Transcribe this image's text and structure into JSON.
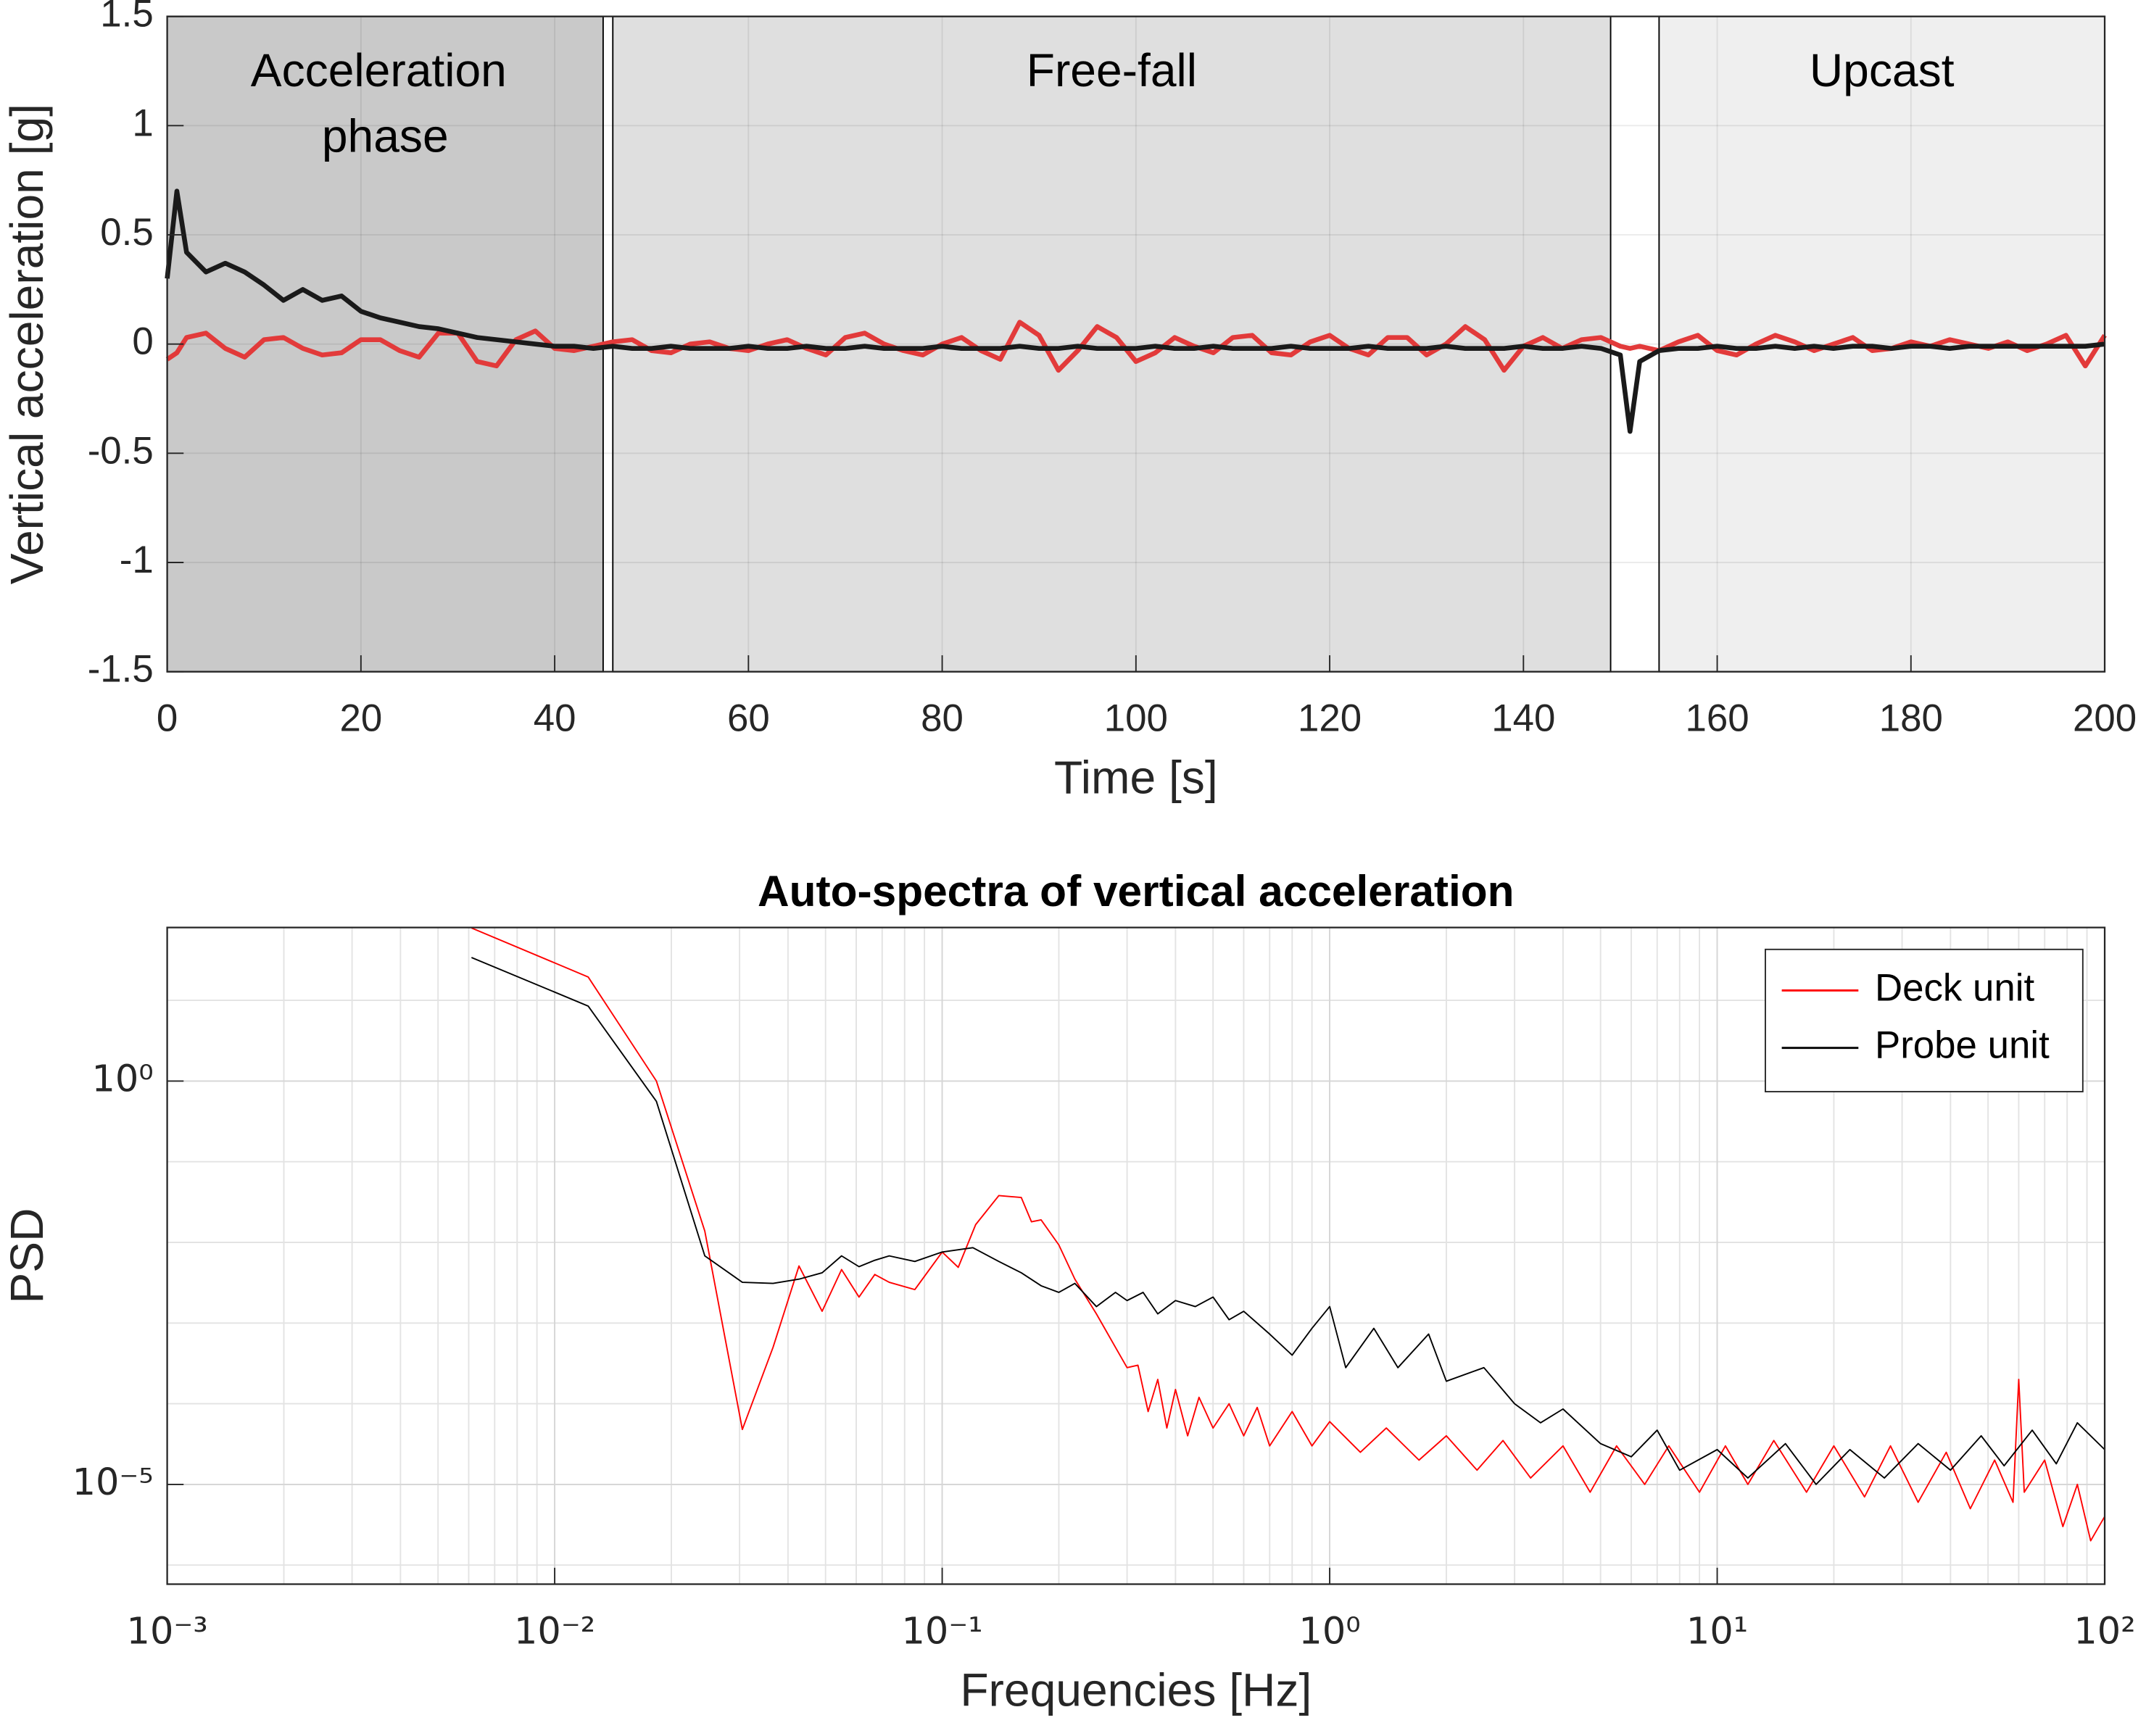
{
  "chart_data": [
    {
      "type": "line",
      "xlabel": "Time [s]",
      "ylabel": "Vertical acceleration [g]",
      "xlim": [
        0,
        200
      ],
      "ylim": [
        -1.5,
        1.5
      ],
      "xticks": [
        0,
        20,
        40,
        60,
        80,
        100,
        120,
        140,
        160,
        180,
        200
      ],
      "yticks": [
        -1.5,
        -1,
        -0.5,
        0,
        0.5,
        1,
        1.5
      ],
      "grid": true,
      "regions": [
        {
          "label": "Acceleration phase",
          "start": 0,
          "end": 45,
          "color": "#c9c9c9"
        },
        {
          "label": "Free-fall",
          "start": 46,
          "end": 149,
          "color": "#dfdfdf"
        },
        {
          "label": "Upcast",
          "start": 154,
          "end": 200,
          "color": "#efefef"
        }
      ],
      "x": [
        0,
        1,
        2,
        4,
        6,
        8,
        10,
        12,
        14,
        16,
        18,
        20,
        22,
        24,
        26,
        28,
        30,
        32,
        34,
        36,
        38,
        40,
        42,
        44,
        46,
        48,
        50,
        52,
        54,
        56,
        58,
        60,
        62,
        64,
        66,
        68,
        70,
        72,
        74,
        76,
        78,
        80,
        82,
        84,
        86,
        88,
        90,
        92,
        94,
        96,
        98,
        100,
        102,
        104,
        106,
        108,
        110,
        112,
        114,
        116,
        118,
        120,
        122,
        124,
        126,
        128,
        130,
        132,
        134,
        136,
        138,
        140,
        142,
        144,
        146,
        148,
        150,
        151,
        152,
        154,
        156,
        158,
        160,
        162,
        164,
        166,
        168,
        170,
        172,
        174,
        176,
        178,
        180,
        182,
        184,
        186,
        188,
        190,
        192,
        194,
        196,
        198,
        200
      ],
      "series": [
        {
          "color": "#e23a3a",
          "values": [
            -0.07,
            -0.04,
            0.03,
            0.05,
            -0.02,
            -0.06,
            0.02,
            0.03,
            -0.02,
            -0.05,
            -0.04,
            0.02,
            0.02,
            -0.03,
            -0.06,
            0.05,
            0.05,
            -0.08,
            -0.1,
            0.02,
            0.06,
            -0.02,
            -0.03,
            -0.01,
            0.01,
            0.02,
            -0.03,
            -0.04,
            0,
            0.01,
            -0.02,
            -0.03,
            0,
            0.02,
            -0.02,
            -0.05,
            0.03,
            0.05,
            0,
            -0.03,
            -0.05,
            0,
            0.03,
            -0.03,
            -0.07,
            0.1,
            0.04,
            -0.12,
            -0.03,
            0.08,
            0.03,
            -0.08,
            -0.04,
            0.03,
            -0.01,
            -0.04,
            0.03,
            0.04,
            -0.04,
            -0.05,
            0.01,
            0.04,
            -0.02,
            -0.05,
            0.03,
            0.03,
            -0.05,
            0,
            0.08,
            0.02,
            -0.12,
            -0.01,
            0.03,
            -0.02,
            0.02,
            0.03,
            -0.01,
            -0.02,
            -0.01,
            -0.03,
            0.01,
            0.04,
            -0.03,
            -0.05,
            0,
            0.04,
            0.01,
            -0.03,
            0,
            0.03,
            -0.03,
            -0.02,
            0.01,
            -0.01,
            0.02,
            0,
            -0.02,
            0.01,
            -0.03,
            0,
            0.04,
            -0.1,
            0.04
          ]
        },
        {
          "color": "#1a1a1a",
          "values": [
            0.3,
            0.7,
            0.42,
            0.33,
            0.37,
            0.33,
            0.27,
            0.2,
            0.25,
            0.2,
            0.22,
            0.15,
            0.12,
            0.1,
            0.08,
            0.07,
            0.05,
            0.03,
            0.02,
            0.01,
            0,
            -0.01,
            -0.01,
            -0.02,
            -0.01,
            -0.02,
            -0.02,
            -0.01,
            -0.02,
            -0.02,
            -0.02,
            -0.01,
            -0.02,
            -0.02,
            -0.01,
            -0.02,
            -0.02,
            -0.01,
            -0.02,
            -0.02,
            -0.02,
            -0.01,
            -0.02,
            -0.02,
            -0.02,
            -0.01,
            -0.02,
            -0.02,
            -0.01,
            -0.02,
            -0.02,
            -0.02,
            -0.01,
            -0.02,
            -0.02,
            -0.01,
            -0.02,
            -0.02,
            -0.02,
            -0.01,
            -0.02,
            -0.02,
            -0.02,
            -0.01,
            -0.02,
            -0.02,
            -0.02,
            -0.01,
            -0.02,
            -0.02,
            -0.02,
            -0.01,
            -0.02,
            -0.02,
            -0.01,
            -0.02,
            -0.05,
            -0.4,
            -0.08,
            -0.03,
            -0.02,
            -0.02,
            -0.01,
            -0.02,
            -0.02,
            -0.01,
            -0.02,
            -0.01,
            -0.02,
            -0.01,
            -0.01,
            -0.02,
            -0.01,
            -0.01,
            -0.02,
            -0.01,
            -0.01,
            -0.01,
            -0.01,
            -0.01,
            -0.01,
            -0.01,
            0
          ]
        }
      ]
    },
    {
      "type": "line",
      "title": "Auto-spectra of vertical acceleration",
      "xlabel": "Frequencies [Hz]",
      "ylabel": "PSD",
      "xlog": true,
      "ylog": true,
      "xlim": [
        0.001,
        100
      ],
      "ylim": [
        5.8e-07,
        80
      ],
      "xticks": [
        {
          "value": 0.001,
          "label": "10⁻³"
        },
        {
          "value": 0.01,
          "label": "10⁻²"
        },
        {
          "value": 0.1,
          "label": "10⁻¹"
        },
        {
          "value": 1,
          "label": "10⁰"
        },
        {
          "value": 10,
          "label": "10¹"
        },
        {
          "value": 100,
          "label": "10²"
        }
      ],
      "yticks": [
        {
          "value": 1e-05,
          "label": "10⁻⁵"
        },
        {
          "value": 1,
          "label": "10⁰"
        }
      ],
      "grid": true,
      "legend": "northeast",
      "series": [
        {
          "name": "Deck unit",
          "color": "#ff0000",
          "x": [
            0.0061,
            0.0122,
            0.0183,
            0.0244,
            0.0305,
            0.0366,
            0.0427,
            0.049,
            0.055,
            0.061,
            0.067,
            0.073,
            0.085,
            0.1,
            0.11,
            0.122,
            0.14,
            0.16,
            0.17,
            0.18,
            0.2,
            0.22,
            0.25,
            0.28,
            0.3,
            0.32,
            0.34,
            0.36,
            0.38,
            0.4,
            0.43,
            0.46,
            0.5,
            0.55,
            0.6,
            0.65,
            0.7,
            0.8,
            0.9,
            1,
            1.2,
            1.4,
            1.7,
            2,
            2.4,
            2.8,
            3.3,
            4,
            4.7,
            5.5,
            6.5,
            7.5,
            9,
            10.5,
            12,
            14,
            17,
            20,
            24,
            28,
            33,
            39,
            45,
            52,
            58,
            60,
            62,
            70,
            78,
            85,
            92,
            100
          ],
          "values": [
            79,
            19.5,
            1,
            0.0138,
            4.8e-05,
            0.0005,
            0.0051,
            0.0014,
            0.0046,
            0.0021,
            0.004,
            0.0032,
            0.0026,
            0.0076,
            0.0049,
            0.0166,
            0.038,
            0.036,
            0.018,
            0.019,
            0.0093,
            0.0035,
            0.0013,
            0.0005,
            0.00028,
            0.0003,
            8e-05,
            0.0002,
            5e-05,
            0.00015,
            4e-05,
            0.00012,
            5e-05,
            0.0001,
            4e-05,
            9e-05,
            3e-05,
            8e-05,
            3e-05,
            6e-05,
            2.5e-05,
            5e-05,
            2e-05,
            4e-05,
            1.5e-05,
            3.5e-05,
            1.2e-05,
            3e-05,
            8e-06,
            3e-05,
            1e-05,
            3e-05,
            8e-06,
            3e-05,
            1e-05,
            3.5e-05,
            8e-06,
            3e-05,
            7e-06,
            3e-05,
            6e-06,
            2.5e-05,
            5e-06,
            2e-05,
            6e-06,
            0.0002,
            8e-06,
            2e-05,
            3e-06,
            1e-05,
            2e-06,
            4e-06
          ]
        },
        {
          "name": "Probe unit",
          "color": "#000000",
          "x": [
            0.0061,
            0.0122,
            0.0183,
            0.0244,
            0.0305,
            0.0366,
            0.0427,
            0.049,
            0.055,
            0.061,
            0.067,
            0.073,
            0.085,
            0.1,
            0.12,
            0.14,
            0.16,
            0.18,
            0.2,
            0.22,
            0.25,
            0.28,
            0.3,
            0.33,
            0.36,
            0.4,
            0.45,
            0.5,
            0.55,
            0.6,
            0.7,
            0.8,
            0.9,
            1,
            1.1,
            1.3,
            1.5,
            1.8,
            2,
            2.5,
            3,
            3.5,
            4,
            5,
            6,
            7,
            8,
            10,
            12,
            15,
            18,
            22,
            27,
            33,
            40,
            48,
            55,
            65,
            75,
            85,
            100
          ],
          "values": [
            34,
            8.5,
            0.56,
            0.0068,
            0.0032,
            0.0031,
            0.0035,
            0.0042,
            0.0068,
            0.005,
            0.006,
            0.0068,
            0.0058,
            0.0076,
            0.0086,
            0.0058,
            0.0042,
            0.0029,
            0.0024,
            0.0031,
            0.0016,
            0.0024,
            0.0019,
            0.0024,
            0.0013,
            0.0019,
            0.0016,
            0.0021,
            0.0011,
            0.0014,
            0.00073,
            0.0004,
            0.00086,
            0.0016,
            0.00028,
            0.00086,
            0.00028,
            0.00073,
            0.00019,
            0.00028,
            0.0001,
            5.8e-05,
            8.6e-05,
            3.2e-05,
            2.2e-05,
            4.7e-05,
            1.5e-05,
            2.7e-05,
            1.2e-05,
            3.2e-05,
            1e-05,
            2.7e-05,
            1.2e-05,
            3.2e-05,
            1.5e-05,
            4e-05,
            1.7e-05,
            4.7e-05,
            1.8e-05,
            5.8e-05,
            2.7e-05
          ]
        }
      ]
    }
  ]
}
